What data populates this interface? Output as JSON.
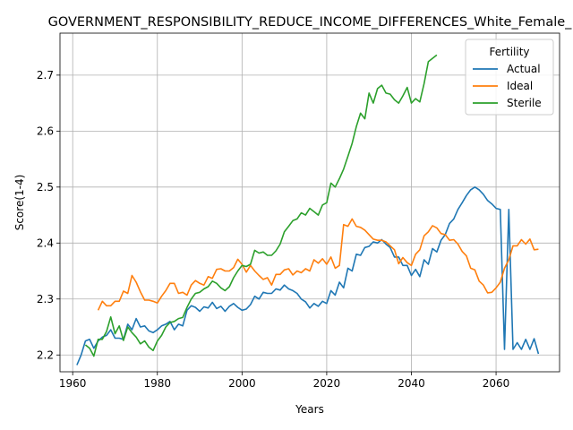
{
  "chart_data": {
    "type": "line",
    "title": "GOVERNMENT_RESPONSIBILITY_REDUCE_INCOME_DIFFERENCES_White_Female_",
    "xlabel": "Years",
    "ylabel": "Score(1-4)",
    "xlim": [
      1957,
      2075
    ],
    "ylim": [
      2.17,
      2.775
    ],
    "xticks": [
      1960,
      1980,
      2000,
      2020,
      2040,
      2060
    ],
    "yticks": [
      2.2,
      2.3,
      2.4,
      2.5,
      2.6,
      2.7
    ],
    "xtick_labels": [
      "1960",
      "1980",
      "2000",
      "2020",
      "2040",
      "2060"
    ],
    "ytick_labels": [
      "2.2",
      "2.3",
      "2.4",
      "2.5",
      "2.6",
      "2.7"
    ],
    "grid": true,
    "legend": {
      "title": "Fertility",
      "placement": "top-right"
    },
    "series": [
      {
        "name": "Actual",
        "color": "#1f77b4",
        "points": [
          [
            1961,
            2.182
          ],
          [
            1962,
            2.2
          ],
          [
            1963,
            2.225
          ],
          [
            1964,
            2.228
          ],
          [
            1965,
            2.212
          ],
          [
            1966,
            2.225
          ],
          [
            1967,
            2.232
          ],
          [
            1968,
            2.235
          ],
          [
            1969,
            2.245
          ],
          [
            1970,
            2.23
          ],
          [
            1971,
            2.23
          ],
          [
            1972,
            2.228
          ],
          [
            1973,
            2.255
          ],
          [
            1974,
            2.245
          ],
          [
            1975,
            2.265
          ],
          [
            1976,
            2.25
          ],
          [
            1977,
            2.252
          ],
          [
            1978,
            2.243
          ],
          [
            1979,
            2.24
          ],
          [
            1980,
            2.245
          ],
          [
            1981,
            2.252
          ],
          [
            1982,
            2.255
          ],
          [
            1983,
            2.26
          ],
          [
            1984,
            2.245
          ],
          [
            1985,
            2.255
          ],
          [
            1986,
            2.252
          ],
          [
            1987,
            2.28
          ],
          [
            1988,
            2.288
          ],
          [
            1989,
            2.285
          ],
          [
            1990,
            2.278
          ],
          [
            1991,
            2.286
          ],
          [
            1992,
            2.284
          ],
          [
            1993,
            2.294
          ],
          [
            1994,
            2.283
          ],
          [
            1995,
            2.287
          ],
          [
            1996,
            2.278
          ],
          [
            1997,
            2.287
          ],
          [
            1998,
            2.292
          ],
          [
            1999,
            2.285
          ],
          [
            2000,
            2.28
          ],
          [
            2001,
            2.282
          ],
          [
            2002,
            2.29
          ],
          [
            2003,
            2.305
          ],
          [
            2004,
            2.3
          ],
          [
            2005,
            2.312
          ],
          [
            2006,
            2.31
          ],
          [
            2007,
            2.31
          ],
          [
            2008,
            2.318
          ],
          [
            2009,
            2.316
          ],
          [
            2010,
            2.325
          ],
          [
            2011,
            2.318
          ],
          [
            2012,
            2.315
          ],
          [
            2013,
            2.31
          ],
          [
            2014,
            2.3
          ],
          [
            2015,
            2.295
          ],
          [
            2016,
            2.284
          ],
          [
            2017,
            2.292
          ],
          [
            2018,
            2.287
          ],
          [
            2019,
            2.296
          ],
          [
            2020,
            2.292
          ],
          [
            2021,
            2.315
          ],
          [
            2022,
            2.307
          ],
          [
            2023,
            2.33
          ],
          [
            2024,
            2.32
          ],
          [
            2025,
            2.355
          ],
          [
            2026,
            2.35
          ],
          [
            2027,
            2.38
          ],
          [
            2028,
            2.378
          ],
          [
            2029,
            2.392
          ],
          [
            2030,
            2.394
          ],
          [
            2031,
            2.402
          ],
          [
            2032,
            2.4
          ],
          [
            2033,
            2.406
          ],
          [
            2034,
            2.398
          ],
          [
            2035,
            2.392
          ],
          [
            2036,
            2.375
          ],
          [
            2037,
            2.375
          ],
          [
            2038,
            2.36
          ],
          [
            2039,
            2.36
          ],
          [
            2040,
            2.342
          ],
          [
            2041,
            2.353
          ],
          [
            2042,
            2.34
          ],
          [
            2043,
            2.37
          ],
          [
            2044,
            2.362
          ],
          [
            2045,
            2.39
          ],
          [
            2046,
            2.384
          ],
          [
            2047,
            2.405
          ],
          [
            2048,
            2.415
          ],
          [
            2049,
            2.435
          ],
          [
            2050,
            2.443
          ],
          [
            2051,
            2.46
          ],
          [
            2052,
            2.472
          ],
          [
            2053,
            2.485
          ],
          [
            2054,
            2.495
          ],
          [
            2055,
            2.5
          ],
          [
            2056,
            2.495
          ],
          [
            2057,
            2.487
          ],
          [
            2058,
            2.476
          ],
          [
            2059,
            2.47
          ],
          [
            2060,
            2.462
          ],
          [
            2061,
            2.46
          ],
          [
            2062,
            2.21
          ],
          [
            2063,
            2.46
          ],
          [
            2064,
            2.21
          ],
          [
            2065,
            2.222
          ],
          [
            2066,
            2.21
          ],
          [
            2067,
            2.228
          ],
          [
            2068,
            2.21
          ],
          [
            2069,
            2.229
          ],
          [
            2070,
            2.202
          ]
        ]
      },
      {
        "name": "Ideal",
        "color": "#ff7f0e",
        "points": [
          [
            1966,
            2.28
          ],
          [
            1967,
            2.296
          ],
          [
            1968,
            2.288
          ],
          [
            1969,
            2.288
          ],
          [
            1970,
            2.296
          ],
          [
            1971,
            2.296
          ],
          [
            1972,
            2.314
          ],
          [
            1973,
            2.31
          ],
          [
            1974,
            2.342
          ],
          [
            1975,
            2.33
          ],
          [
            1976,
            2.313
          ],
          [
            1977,
            2.298
          ],
          [
            1978,
            2.298
          ],
          [
            1979,
            2.296
          ],
          [
            1980,
            2.293
          ],
          [
            1981,
            2.305
          ],
          [
            1982,
            2.315
          ],
          [
            1983,
            2.328
          ],
          [
            1984,
            2.328
          ],
          [
            1985,
            2.31
          ],
          [
            1986,
            2.312
          ],
          [
            1987,
            2.307
          ],
          [
            1988,
            2.325
          ],
          [
            1989,
            2.333
          ],
          [
            1990,
            2.328
          ],
          [
            1991,
            2.325
          ],
          [
            1992,
            2.34
          ],
          [
            1993,
            2.337
          ],
          [
            1994,
            2.353
          ],
          [
            1995,
            2.354
          ],
          [
            1996,
            2.35
          ],
          [
            1997,
            2.35
          ],
          [
            1998,
            2.356
          ],
          [
            1999,
            2.371
          ],
          [
            2000,
            2.362
          ],
          [
            2001,
            2.348
          ],
          [
            2002,
            2.36
          ],
          [
            2003,
            2.35
          ],
          [
            2004,
            2.342
          ],
          [
            2005,
            2.335
          ],
          [
            2006,
            2.338
          ],
          [
            2007,
            2.325
          ],
          [
            2008,
            2.344
          ],
          [
            2009,
            2.344
          ],
          [
            2010,
            2.352
          ],
          [
            2011,
            2.354
          ],
          [
            2012,
            2.343
          ],
          [
            2013,
            2.35
          ],
          [
            2014,
            2.347
          ],
          [
            2015,
            2.354
          ],
          [
            2016,
            2.35
          ],
          [
            2017,
            2.37
          ],
          [
            2018,
            2.364
          ],
          [
            2019,
            2.372
          ],
          [
            2020,
            2.362
          ],
          [
            2021,
            2.375
          ],
          [
            2022,
            2.355
          ],
          [
            2023,
            2.36
          ],
          [
            2024,
            2.433
          ],
          [
            2025,
            2.43
          ],
          [
            2026,
            2.443
          ],
          [
            2027,
            2.43
          ],
          [
            2028,
            2.428
          ],
          [
            2029,
            2.423
          ],
          [
            2030,
            2.415
          ],
          [
            2031,
            2.407
          ],
          [
            2032,
            2.405
          ],
          [
            2033,
            2.405
          ],
          [
            2034,
            2.402
          ],
          [
            2035,
            2.395
          ],
          [
            2036,
            2.388
          ],
          [
            2037,
            2.363
          ],
          [
            2038,
            2.374
          ],
          [
            2039,
            2.365
          ],
          [
            2040,
            2.36
          ],
          [
            2041,
            2.38
          ],
          [
            2042,
            2.388
          ],
          [
            2043,
            2.413
          ],
          [
            2044,
            2.42
          ],
          [
            2045,
            2.431
          ],
          [
            2046,
            2.427
          ],
          [
            2047,
            2.417
          ],
          [
            2048,
            2.415
          ],
          [
            2049,
            2.405
          ],
          [
            2050,
            2.406
          ],
          [
            2051,
            2.398
          ],
          [
            2052,
            2.385
          ],
          [
            2053,
            2.377
          ],
          [
            2054,
            2.355
          ],
          [
            2055,
            2.352
          ],
          [
            2056,
            2.332
          ],
          [
            2057,
            2.325
          ],
          [
            2058,
            2.311
          ],
          [
            2059,
            2.312
          ],
          [
            2060,
            2.32
          ],
          [
            2061,
            2.33
          ],
          [
            2062,
            2.355
          ],
          [
            2063,
            2.37
          ],
          [
            2064,
            2.395
          ],
          [
            2065,
            2.395
          ],
          [
            2066,
            2.406
          ],
          [
            2067,
            2.398
          ],
          [
            2068,
            2.407
          ],
          [
            2069,
            2.388
          ],
          [
            2070,
            2.389
          ]
        ]
      },
      {
        "name": "Sterile",
        "color": "#2ca02c",
        "points": [
          [
            1963,
            2.218
          ],
          [
            1964,
            2.212
          ],
          [
            1965,
            2.198
          ],
          [
            1966,
            2.228
          ],
          [
            1967,
            2.228
          ],
          [
            1968,
            2.242
          ],
          [
            1969,
            2.268
          ],
          [
            1970,
            2.238
          ],
          [
            1971,
            2.252
          ],
          [
            1972,
            2.226
          ],
          [
            1973,
            2.25
          ],
          [
            1974,
            2.24
          ],
          [
            1975,
            2.232
          ],
          [
            1976,
            2.22
          ],
          [
            1977,
            2.225
          ],
          [
            1978,
            2.214
          ],
          [
            1979,
            2.208
          ],
          [
            1980,
            2.225
          ],
          [
            1981,
            2.235
          ],
          [
            1982,
            2.25
          ],
          [
            1983,
            2.258
          ],
          [
            1984,
            2.26
          ],
          [
            1985,
            2.265
          ],
          [
            1986,
            2.267
          ],
          [
            1987,
            2.285
          ],
          [
            1988,
            2.3
          ],
          [
            1989,
            2.31
          ],
          [
            1990,
            2.312
          ],
          [
            1991,
            2.318
          ],
          [
            1992,
            2.322
          ],
          [
            1993,
            2.332
          ],
          [
            1994,
            2.328
          ],
          [
            1995,
            2.32
          ],
          [
            1996,
            2.315
          ],
          [
            1997,
            2.322
          ],
          [
            1998,
            2.338
          ],
          [
            1999,
            2.35
          ],
          [
            2000,
            2.36
          ],
          [
            2001,
            2.358
          ],
          [
            2002,
            2.362
          ],
          [
            2003,
            2.387
          ],
          [
            2004,
            2.382
          ],
          [
            2005,
            2.384
          ],
          [
            2006,
            2.378
          ],
          [
            2007,
            2.378
          ],
          [
            2008,
            2.386
          ],
          [
            2009,
            2.398
          ],
          [
            2010,
            2.42
          ],
          [
            2011,
            2.43
          ],
          [
            2012,
            2.44
          ],
          [
            2013,
            2.443
          ],
          [
            2014,
            2.454
          ],
          [
            2015,
            2.45
          ],
          [
            2016,
            2.462
          ],
          [
            2017,
            2.456
          ],
          [
            2018,
            2.45
          ],
          [
            2019,
            2.468
          ],
          [
            2020,
            2.472
          ],
          [
            2021,
            2.507
          ],
          [
            2022,
            2.5
          ],
          [
            2023,
            2.515
          ],
          [
            2024,
            2.532
          ],
          [
            2025,
            2.555
          ],
          [
            2026,
            2.578
          ],
          [
            2027,
            2.608
          ],
          [
            2028,
            2.632
          ],
          [
            2029,
            2.622
          ],
          [
            2030,
            2.668
          ],
          [
            2031,
            2.65
          ],
          [
            2032,
            2.676
          ],
          [
            2033,
            2.682
          ],
          [
            2034,
            2.668
          ],
          [
            2035,
            2.666
          ],
          [
            2036,
            2.656
          ],
          [
            2037,
            2.65
          ],
          [
            2038,
            2.663
          ],
          [
            2039,
            2.678
          ],
          [
            2040,
            2.65
          ],
          [
            2041,
            2.658
          ],
          [
            2042,
            2.652
          ],
          [
            2043,
            2.685
          ],
          [
            2044,
            2.724
          ],
          [
            2045,
            2.73
          ],
          [
            2046,
            2.736
          ]
        ]
      }
    ]
  }
}
